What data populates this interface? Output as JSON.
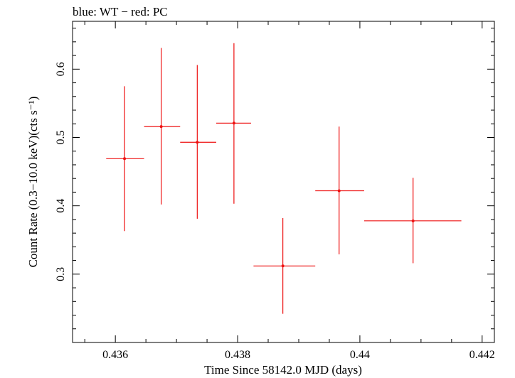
{
  "chart_data": {
    "type": "scatter",
    "title": "blue: WT − red: PC",
    "xlabel": "Time Since 58142.0 MJD (days)",
    "ylabel": "Count Rate (0.3−10.0 keV)(cts s⁻¹)",
    "xlim": [
      0.4353,
      0.4422
    ],
    "ylim": [
      0.2,
      0.67
    ],
    "x_ticks": [
      {
        "value": 0.436,
        "label": "0.436"
      },
      {
        "value": 0.438,
        "label": "0.438"
      },
      {
        "value": 0.44,
        "label": "0.44"
      },
      {
        "value": 0.442,
        "label": "0.442"
      }
    ],
    "y_ticks": [
      {
        "value": 0.3,
        "label": "0.3"
      },
      {
        "value": 0.4,
        "label": "0.4"
      },
      {
        "value": 0.5,
        "label": "0.5"
      },
      {
        "value": 0.6,
        "label": "0.6"
      }
    ],
    "grid": false,
    "series": [
      {
        "color": "#ee1111",
        "points": [
          {
            "x": 0.43615,
            "xerr_low": 0.43585,
            "xerr_high": 0.43647,
            "y": 0.469,
            "yerr_low": 0.363,
            "yerr_high": 0.575
          },
          {
            "x": 0.43675,
            "xerr_low": 0.43647,
            "xerr_high": 0.43706,
            "y": 0.516,
            "yerr_low": 0.402,
            "yerr_high": 0.631
          },
          {
            "x": 0.43734,
            "xerr_low": 0.43706,
            "xerr_high": 0.43765,
            "y": 0.493,
            "yerr_low": 0.381,
            "yerr_high": 0.606
          },
          {
            "x": 0.43794,
            "xerr_low": 0.43765,
            "xerr_high": 0.43822,
            "y": 0.521,
            "yerr_low": 0.403,
            "yerr_high": 0.638
          },
          {
            "x": 0.43874,
            "xerr_low": 0.43826,
            "xerr_high": 0.43927,
            "y": 0.312,
            "yerr_low": 0.242,
            "yerr_high": 0.382
          },
          {
            "x": 0.43966,
            "xerr_low": 0.43927,
            "xerr_high": 0.44007,
            "y": 0.422,
            "yerr_low": 0.329,
            "yerr_high": 0.516
          },
          {
            "x": 0.44087,
            "xerr_low": 0.44007,
            "xerr_high": 0.44166,
            "y": 0.378,
            "yerr_low": 0.316,
            "yerr_high": 0.441
          }
        ]
      }
    ]
  }
}
